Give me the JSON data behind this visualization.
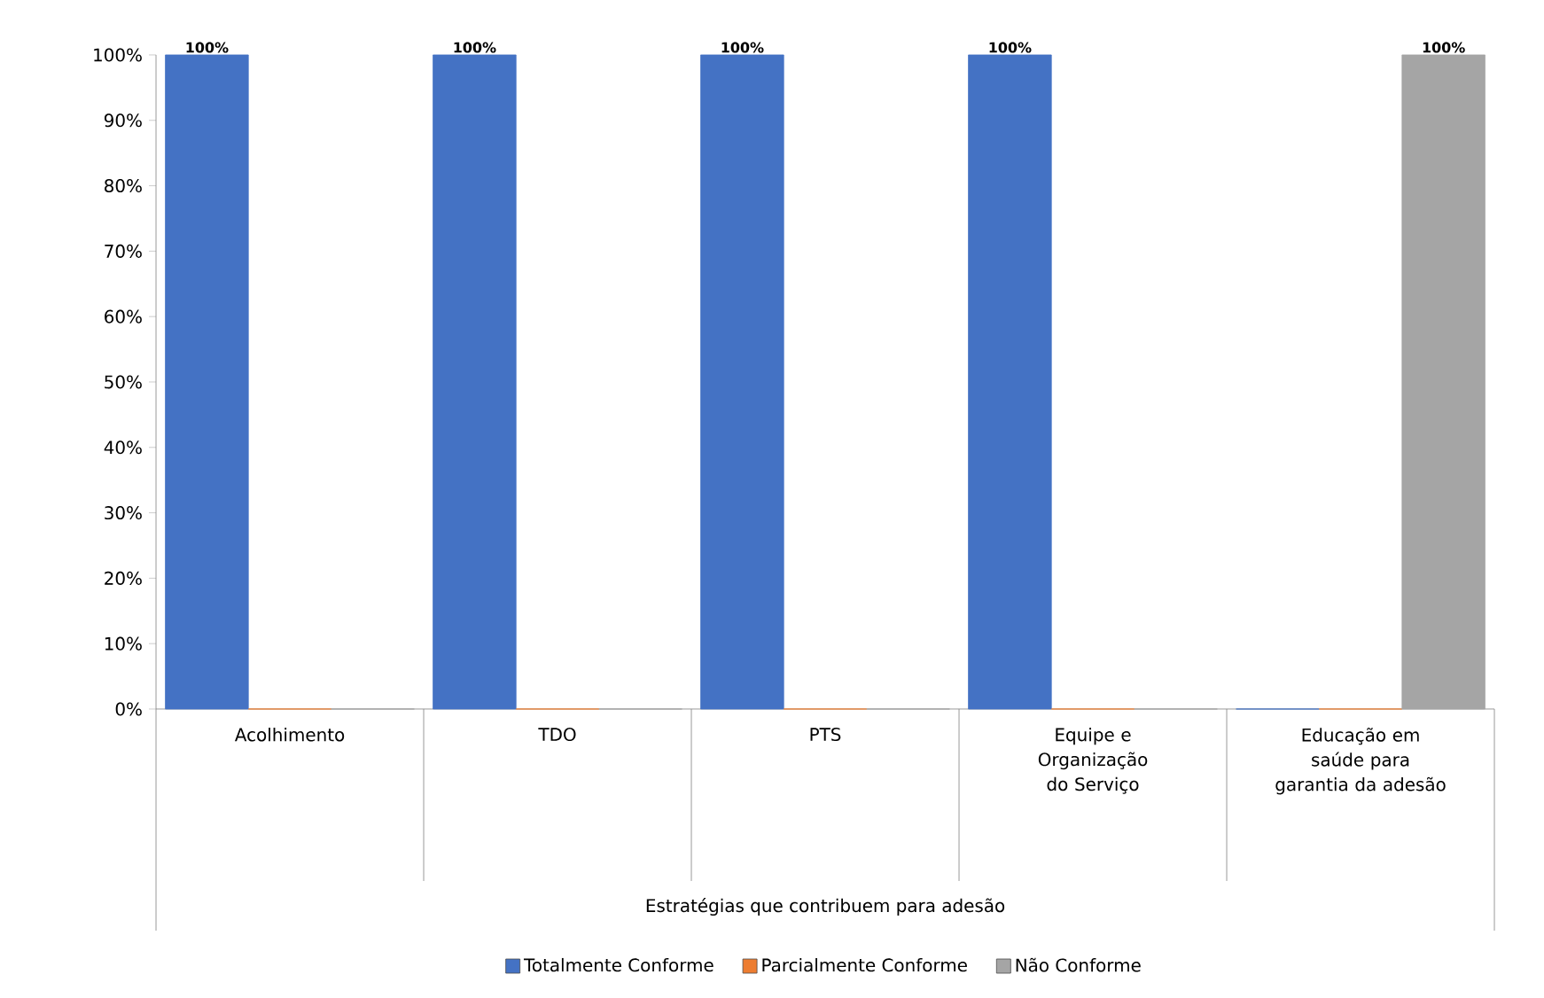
{
  "chart_data": {
    "type": "bar",
    "annotations": [
      "Estratégias que contribuem para adesão"
    ],
    "categories": [
      "Acolhimento",
      "TDO",
      "PTS",
      "Equipe e Organização do Serviço",
      "Educação em saúde para garantia da adesão"
    ],
    "series": [
      {
        "name": "Totalmente Conforme",
        "color": "#4472c4",
        "values": [
          100,
          100,
          100,
          100,
          0
        ],
        "value_labels": [
          "100%",
          "100%",
          "100%",
          "100%",
          null
        ]
      },
      {
        "name": "Parcialmente Conforme",
        "color": "#ed7d31",
        "values": [
          0,
          0,
          0,
          0,
          0
        ],
        "value_labels": [
          null,
          null,
          null,
          null,
          null
        ]
      },
      {
        "name": "Não Conforme",
        "color": "#a5a5a5",
        "values": [
          0,
          0,
          0,
          0,
          100
        ],
        "value_labels": [
          null,
          null,
          null,
          null,
          "100%"
        ]
      }
    ],
    "ylim": [
      0,
      100
    ],
    "yticks": [
      {
        "value": 0,
        "label": "0%"
      },
      {
        "value": 10,
        "label": "10%"
      },
      {
        "value": 20,
        "label": "20%"
      },
      {
        "value": 30,
        "label": "30%"
      },
      {
        "value": 40,
        "label": "40%"
      },
      {
        "value": 50,
        "label": "50%"
      },
      {
        "value": 60,
        "label": "60%"
      },
      {
        "value": 70,
        "label": "70%"
      },
      {
        "value": 80,
        "label": "80%"
      },
      {
        "value": 90,
        "label": "90%"
      },
      {
        "value": 100,
        "label": "100%"
      }
    ],
    "grid": false,
    "legend": "bottom"
  }
}
